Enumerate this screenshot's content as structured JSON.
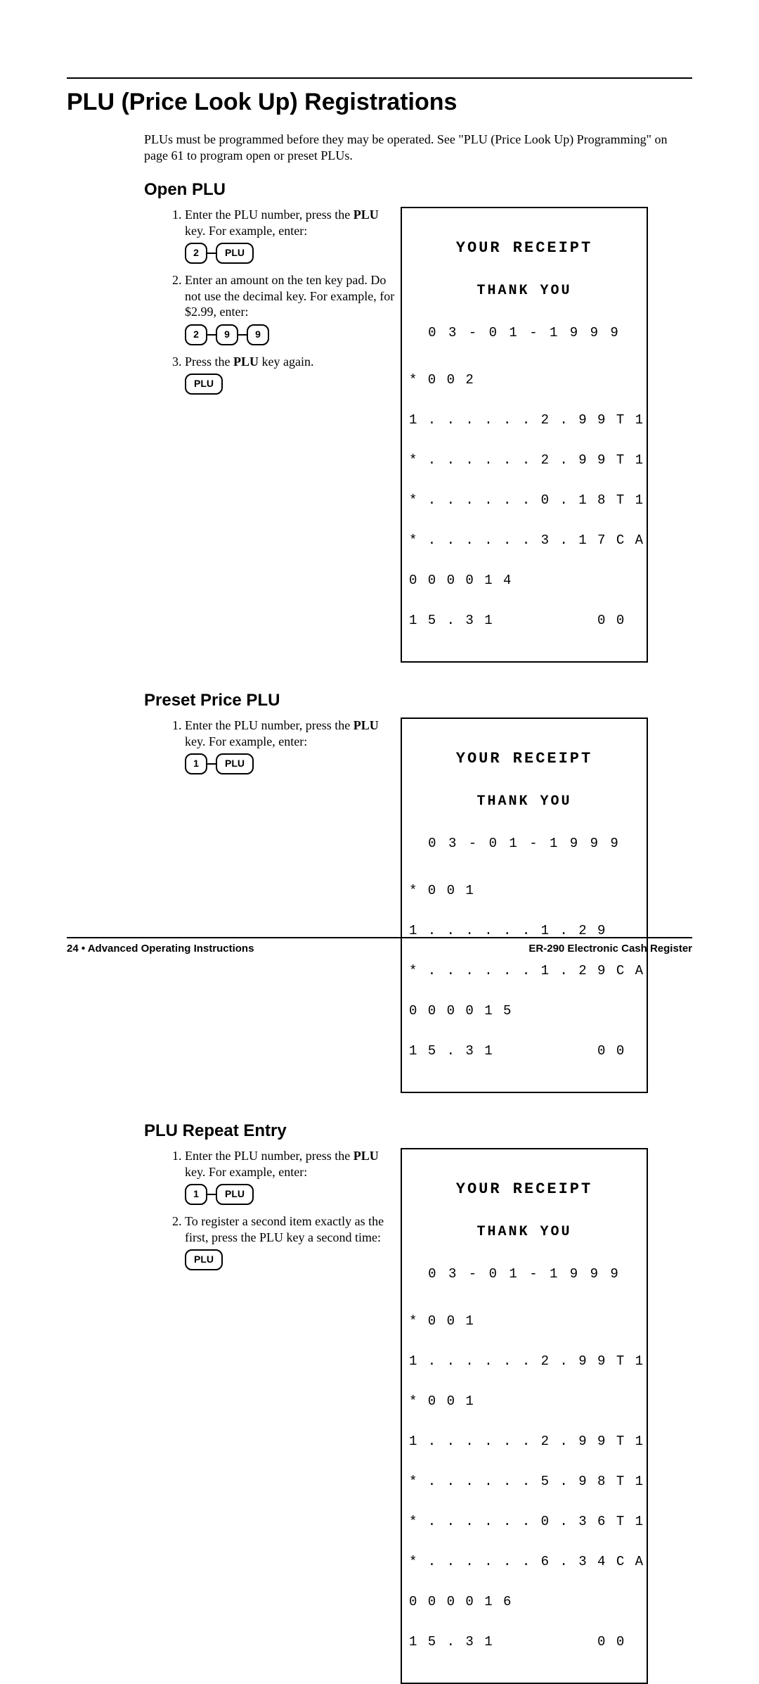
{
  "page": {
    "title": "PLU (Price Look Up) Registrations",
    "intro": "PLUs must be programmed before they may be operated.  See \"PLU (Price Look Up) Programming\" on page 61 to program open or preset PLUs.",
    "footer_left": "24 • Advanced Operating Instructions",
    "footer_right": "ER-290 Electronic Cash Register"
  },
  "open_plu": {
    "heading": "Open PLU",
    "steps": {
      "s1_pre": "Enter the PLU number, press the ",
      "s1_bold": "PLU",
      "s1_post": " key.  For example, enter:",
      "s1_keys": [
        "2",
        "PLU"
      ],
      "s2": "Enter an amount on the ten key pad.  Do not use the decimal key.  For example, for $2.99, enter:",
      "s2_keys": [
        "2",
        "9",
        "9"
      ],
      "s3_pre": "Press the ",
      "s3_bold": "PLU",
      "s3_post": " key again.",
      "s3_keys": [
        "PLU"
      ]
    },
    "receipt": {
      "header1": "YOUR RECEIPT",
      "header2": "THANK YOU",
      "date": "0 3 - 0 1 - 1 9 9 9",
      "lines": [
        "* 0 0 2",
        "1 . . . . . . 2 . 9 9 T 1",
        "* . . . . . . 2 . 9 9 T 1",
        "* . . . . . . 0 . 1 8 T 1",
        "* . . . . . . 3 . 1 7 C A",
        "0 0 0 0 1 4",
        "1 5 . 3 1           0 0"
      ]
    }
  },
  "preset_plu": {
    "heading": "Preset Price PLU",
    "steps": {
      "s1_pre": "Enter the PLU number, press the ",
      "s1_bold": "PLU",
      "s1_post": " key.  For example, enter:",
      "s1_keys": [
        "1",
        "PLU"
      ]
    },
    "receipt": {
      "header1": "YOUR RECEIPT",
      "header2": "THANK YOU",
      "date": "0 3 - 0 1 - 1 9 9 9",
      "lines": [
        "* 0 0 1",
        "1 . . . . . . 1 . 2 9",
        "* . . . . . . 1 . 2 9 C A",
        "0 0 0 0 1 5",
        "1 5 . 3 1           0 0"
      ]
    }
  },
  "repeat_plu": {
    "heading": "PLU Repeat Entry",
    "steps": {
      "s1_pre": "Enter the PLU number, press the ",
      "s1_bold": "PLU",
      "s1_post": " key.  For example, enter:",
      "s1_keys": [
        "1",
        "PLU"
      ],
      "s2": "To register a second item exactly as the first, press the PLU key a second time:",
      "s2_keys": [
        "PLU"
      ]
    },
    "receipt": {
      "header1": "YOUR RECEIPT",
      "header2": "THANK YOU",
      "date": "0 3 - 0 1 - 1 9 9 9",
      "lines": [
        "* 0 0 1",
        "1 . . . . . . 2 . 9 9 T 1",
        "* 0 0 1",
        "1 . . . . . . 2 . 9 9 T 1",
        "* . . . . . . 5 . 9 8 T 1",
        "* . . . . . . 0 . 3 6 T 1",
        "* . . . . . . 6 . 3 4 C A",
        "0 0 0 0 1 6",
        "1 5 . 3 1           0 0"
      ]
    }
  }
}
